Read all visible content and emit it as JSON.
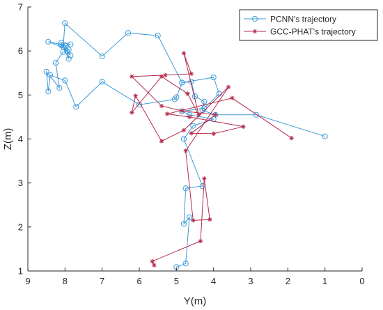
{
  "chart_data": {
    "type": "line",
    "xlabel": "Y(m)",
    "ylabel": "Z(m)",
    "xlim": [
      0,
      9
    ],
    "ylim": [
      1,
      7
    ],
    "x_reversed": true,
    "xticks": [
      9,
      8,
      7,
      6,
      5,
      4,
      3,
      2,
      1,
      0
    ],
    "yticks": [
      1,
      2,
      3,
      4,
      5,
      6,
      7
    ],
    "legend_position": "top-right",
    "series": [
      {
        "name": "PCNN's trajectory",
        "color": "#3a9ad9",
        "marker": "circle",
        "points": [
          [
            1.0,
            4.06
          ],
          [
            2.85,
            4.55
          ],
          [
            3.95,
            4.55
          ],
          [
            4.3,
            4.65
          ],
          [
            4.25,
            4.85
          ],
          [
            4.5,
            4.97
          ],
          [
            4.6,
            5.3
          ],
          [
            4.85,
            5.28
          ],
          [
            5.0,
            4.95
          ],
          [
            5.05,
            4.9
          ],
          [
            6.0,
            4.78
          ],
          [
            7.0,
            5.3
          ],
          [
            7.7,
            4.73
          ],
          [
            8.0,
            5.33
          ],
          [
            8.4,
            5.45
          ],
          [
            8.45,
            5.08
          ],
          [
            8.5,
            5.53
          ],
          [
            8.15,
            5.16
          ],
          [
            8.25,
            5.73
          ],
          [
            8.05,
            5.98
          ],
          [
            7.9,
            6.03
          ],
          [
            8.45,
            6.21
          ],
          [
            8.0,
            6.13
          ],
          [
            7.85,
            5.9
          ],
          [
            8.1,
            6.13
          ],
          [
            7.95,
            6.0
          ],
          [
            7.9,
            5.82
          ],
          [
            8.1,
            6.19
          ],
          [
            7.85,
            6.15
          ],
          [
            8.05,
            6.1
          ],
          [
            8.0,
            6.63
          ],
          [
            7.0,
            5.88
          ],
          [
            6.3,
            6.41
          ],
          [
            5.5,
            6.35
          ],
          [
            4.85,
            5.28
          ],
          [
            4.0,
            5.4
          ],
          [
            3.85,
            5.03
          ],
          [
            4.25,
            4.7
          ],
          [
            4.85,
            4.63
          ],
          [
            4.65,
            4.55
          ],
          [
            4.0,
            4.45
          ],
          [
            4.55,
            4.3
          ],
          [
            4.8,
            4.0
          ],
          [
            4.3,
            2.93
          ],
          [
            4.75,
            2.88
          ],
          [
            4.8,
            2.07
          ],
          [
            4.65,
            2.22
          ],
          [
            4.75,
            1.17
          ],
          [
            5.0,
            1.09
          ]
        ]
      },
      {
        "name": "GCC-PHAT's trajectory",
        "color": "#b52a4b",
        "marker": "asterisk",
        "points": [
          [
            1.9,
            4.02
          ],
          [
            3.5,
            4.93
          ],
          [
            5.25,
            4.57
          ],
          [
            4.65,
            4.5
          ],
          [
            3.2,
            4.28
          ],
          [
            4.0,
            4.12
          ],
          [
            4.6,
            4.13
          ],
          [
            3.95,
            4.55
          ],
          [
            4.85,
            4.64
          ],
          [
            5.4,
            4.75
          ],
          [
            6.2,
            5.42
          ],
          [
            5.3,
            5.45
          ],
          [
            4.6,
            5.48
          ],
          [
            4.8,
            5.95
          ],
          [
            4.4,
            4.55
          ],
          [
            4.7,
            5.03
          ],
          [
            5.4,
            5.42
          ],
          [
            6.2,
            4.6
          ],
          [
            6.1,
            4.98
          ],
          [
            5.4,
            3.95
          ],
          [
            4.8,
            4.2
          ],
          [
            3.6,
            5.18
          ],
          [
            4.75,
            3.73
          ],
          [
            4.55,
            2.15
          ],
          [
            4.1,
            2.17
          ],
          [
            4.25,
            3.1
          ],
          [
            4.35,
            1.68
          ],
          [
            5.65,
            1.22
          ],
          [
            5.6,
            1.13
          ]
        ]
      }
    ]
  }
}
